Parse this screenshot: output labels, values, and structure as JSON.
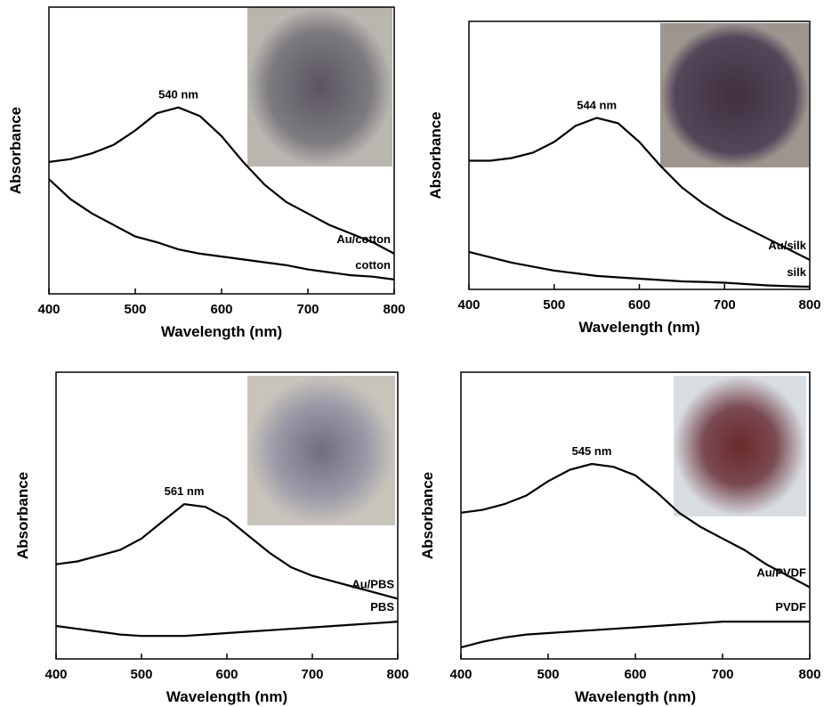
{
  "chart_data": [
    {
      "type": "line",
      "xlabel": "Wavelength (nm)",
      "ylabel": "Absorbance",
      "annotation": "540 nm",
      "x": [
        400,
        425,
        450,
        475,
        500,
        525,
        550,
        575,
        600,
        625,
        650,
        675,
        700,
        725,
        750,
        775,
        800
      ],
      "xlim": [
        400,
        800
      ],
      "xticks": [
        400,
        500,
        600,
        700,
        800
      ],
      "ylim": [
        0,
        1
      ],
      "series": [
        {
          "name": "Au/cotton",
          "color": "#000000",
          "values": [
            0.46,
            0.47,
            0.49,
            0.52,
            0.57,
            0.63,
            0.65,
            0.62,
            0.55,
            0.46,
            0.38,
            0.32,
            0.28,
            0.24,
            0.21,
            0.18,
            0.14
          ]
        },
        {
          "name": "cotton",
          "color": "#000000",
          "values": [
            0.4,
            0.33,
            0.28,
            0.24,
            0.2,
            0.18,
            0.155,
            0.14,
            0.13,
            0.12,
            0.11,
            0.1,
            0.085,
            0.075,
            0.065,
            0.06,
            0.05
          ]
        }
      ]
    },
    {
      "type": "line",
      "xlabel": "Wavelength (nm)",
      "ylabel": "Absorbance",
      "annotation": "544 nm",
      "x": [
        400,
        425,
        450,
        475,
        500,
        525,
        550,
        575,
        600,
        625,
        650,
        675,
        700,
        725,
        750,
        775,
        800
      ],
      "xlim": [
        400,
        800
      ],
      "xticks": [
        400,
        500,
        600,
        700,
        800
      ],
      "ylim": [
        0,
        1
      ],
      "series": [
        {
          "name": "Au/silk",
          "color": "#000000",
          "values": [
            0.48,
            0.48,
            0.49,
            0.51,
            0.55,
            0.61,
            0.64,
            0.62,
            0.55,
            0.46,
            0.38,
            0.32,
            0.27,
            0.23,
            0.19,
            0.15,
            0.11
          ]
        },
        {
          "name": "silk",
          "color": "#000000",
          "values": [
            0.14,
            0.12,
            0.1,
            0.085,
            0.07,
            0.06,
            0.05,
            0.045,
            0.04,
            0.035,
            0.03,
            0.028,
            0.025,
            0.02,
            0.015,
            0.012,
            0.01
          ]
        }
      ]
    },
    {
      "type": "line",
      "xlabel": "Wavelength (nm)",
      "ylabel": "Absorbance",
      "annotation": "561 nm",
      "x": [
        400,
        425,
        450,
        475,
        500,
        525,
        550,
        575,
        600,
        625,
        650,
        675,
        700,
        725,
        750,
        775,
        800
      ],
      "xlim": [
        400,
        800
      ],
      "xticks": [
        400,
        500,
        600,
        700,
        800
      ],
      "ylim": [
        0,
        1
      ],
      "series": [
        {
          "name": "Au/PBS",
          "color": "#000000",
          "values": [
            0.33,
            0.34,
            0.36,
            0.38,
            0.42,
            0.48,
            0.54,
            0.53,
            0.49,
            0.43,
            0.37,
            0.32,
            0.29,
            0.27,
            0.25,
            0.23,
            0.21
          ]
        },
        {
          "name": "PBS",
          "color": "#000000",
          "values": [
            0.115,
            0.105,
            0.095,
            0.085,
            0.08,
            0.08,
            0.08,
            0.085,
            0.09,
            0.095,
            0.1,
            0.105,
            0.11,
            0.115,
            0.12,
            0.125,
            0.13
          ]
        }
      ]
    },
    {
      "type": "line",
      "xlabel": "Wavelength (nm)",
      "ylabel": "Absorbance",
      "annotation": "545 nm",
      "x": [
        400,
        425,
        450,
        475,
        500,
        525,
        550,
        575,
        600,
        625,
        650,
        675,
        700,
        725,
        750,
        775,
        800
      ],
      "xlim": [
        400,
        800
      ],
      "xticks": [
        400,
        500,
        600,
        700,
        800
      ],
      "ylim": [
        0,
        1
      ],
      "series": [
        {
          "name": "Au/PVDF",
          "color": "#000000",
          "values": [
            0.51,
            0.52,
            0.54,
            0.57,
            0.62,
            0.66,
            0.68,
            0.67,
            0.64,
            0.58,
            0.51,
            0.46,
            0.42,
            0.38,
            0.33,
            0.29,
            0.25
          ]
        },
        {
          "name": "PVDF",
          "color": "#000000",
          "values": [
            0.04,
            0.06,
            0.075,
            0.085,
            0.09,
            0.095,
            0.1,
            0.105,
            0.11,
            0.115,
            0.12,
            0.125,
            0.13,
            0.13,
            0.13,
            0.13,
            0.13
          ]
        }
      ]
    }
  ]
}
